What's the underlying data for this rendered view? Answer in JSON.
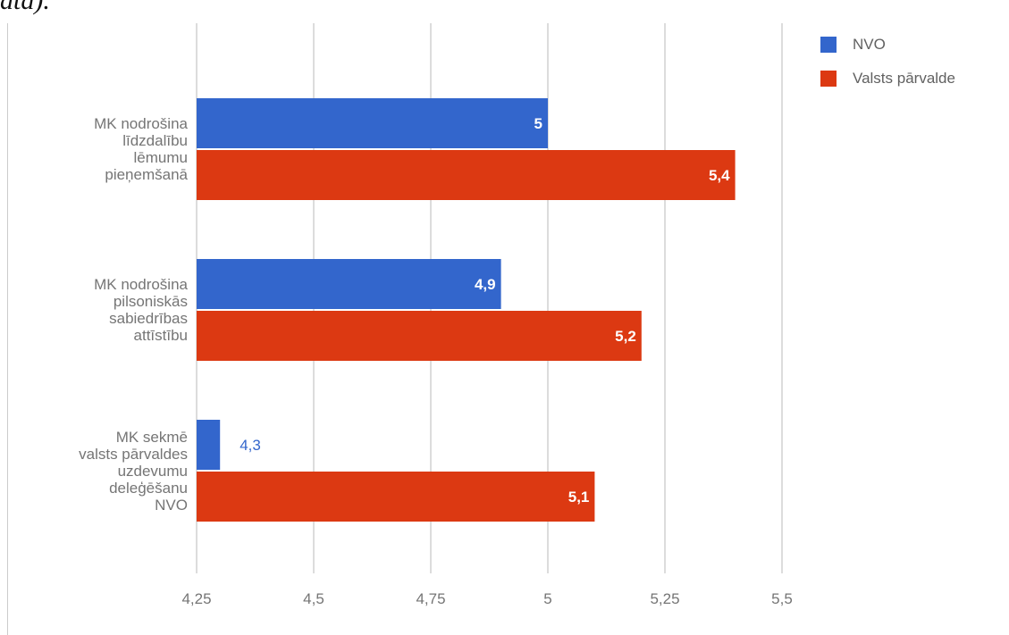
{
  "page_fragment": "ata).",
  "colors": {
    "NVO": "#3366cc",
    "Valsts pārvalde": "#dc3912",
    "grid": "#dcdcdc",
    "tick_text": "#757575",
    "inside_label": "#ffffff"
  },
  "chart_data": {
    "type": "bar",
    "orientation": "horizontal",
    "categories": [
      "MK nodrošina līdzdalību lēmumu pieņemšanā",
      "MK nodrošina pilsoniskās sabiedrības attīstību",
      "MK sekmē valsts pārvaldes uzdevumu deleģēšanu NVO"
    ],
    "category_lines": [
      [
        "MK nodrošina",
        "līdzdalību",
        "lēmumu",
        "pieņemšanā"
      ],
      [
        "MK nodrošina",
        "pilsoniskās",
        "sabiedrības",
        "attīstību"
      ],
      [
        "MK sekmē",
        "valsts pārvaldes",
        "uzdevumu",
        "deleģēšanu",
        "NVO"
      ]
    ],
    "series": [
      {
        "name": "NVO",
        "values": [
          5,
          4.9,
          4.3
        ],
        "labels": [
          "5",
          "4,9",
          "4,3"
        ]
      },
      {
        "name": "Valsts pārvalde",
        "values": [
          5.4,
          5.2,
          5.1
        ],
        "labels": [
          "5,4",
          "5,2",
          "5,1"
        ]
      }
    ],
    "xlim": [
      4.25,
      5.5
    ],
    "xticks": [
      4.25,
      4.5,
      4.75,
      5,
      5.25,
      5.5
    ],
    "xtick_labels": [
      "4,25",
      "4,5",
      "4,75",
      "5",
      "5,25",
      "5,5"
    ],
    "grid": true,
    "legend": "top-right",
    "title": "",
    "xlabel": "",
    "ylabel": ""
  }
}
